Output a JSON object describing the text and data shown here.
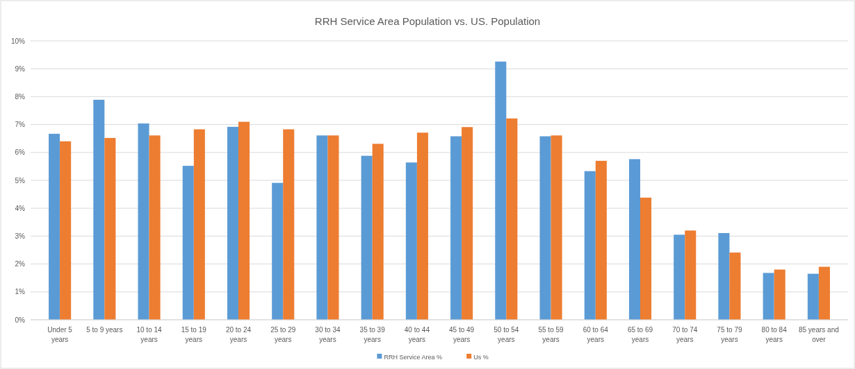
{
  "chart_data": {
    "type": "bar",
    "title": "RRH Service Area Population vs. US. Population",
    "categories": [
      "Under 5 years",
      "5 to 9 years",
      "10 to 14 years",
      "15 to 19 years",
      "20 to 24 years",
      "25 to 29 years",
      "30 to 34 years",
      "35 to 39 years",
      "40 to 44 years",
      "45 to 49 years",
      "50 to 54 years",
      "55 to 59 years",
      "60 to 64 years",
      "65 to 69 years",
      "70 to 74 years",
      "75 to 79 years",
      "80 to 84 years",
      "85 years and over"
    ],
    "series": [
      {
        "name": "RRH Service Area %",
        "color": "#5b9bd5",
        "values": [
          6.67,
          7.89,
          7.04,
          5.52,
          6.92,
          4.91,
          6.61,
          5.88,
          5.64,
          6.58,
          9.26,
          6.58,
          5.33,
          5.76,
          3.05,
          3.11,
          1.68,
          1.65
        ]
      },
      {
        "name": "Us %",
        "color": "#ed7d31",
        "values": [
          6.4,
          6.52,
          6.61,
          6.83,
          7.1,
          6.83,
          6.61,
          6.31,
          6.71,
          6.91,
          7.22,
          6.61,
          5.7,
          4.38,
          3.2,
          2.41,
          1.8,
          1.9
        ]
      }
    ],
    "ylim": [
      0,
      10
    ],
    "yticks": [
      {
        "value": 0,
        "label": "0%"
      },
      {
        "value": 1,
        "label": "1%"
      },
      {
        "value": 2,
        "label": "2%"
      },
      {
        "value": 3,
        "label": "3%"
      },
      {
        "value": 4,
        "label": "4%"
      },
      {
        "value": 5,
        "label": "5%"
      },
      {
        "value": 6,
        "label": "6%"
      },
      {
        "value": 7,
        "label": "7%"
      },
      {
        "value": 8,
        "label": "8%"
      },
      {
        "value": 9,
        "label": "9%"
      },
      {
        "value": 10,
        "label": "10%"
      }
    ],
    "grid": "y",
    "legend": "bottom"
  }
}
